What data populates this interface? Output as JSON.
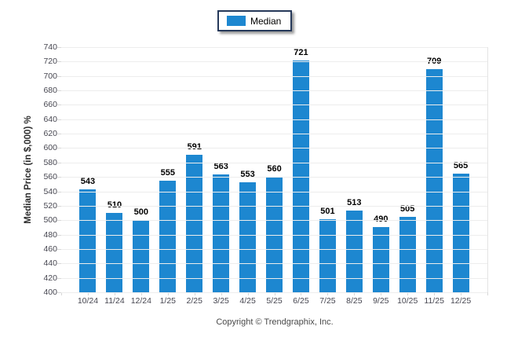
{
  "legend": {
    "items": [
      {
        "label": "Median",
        "color": "#1d87d0"
      }
    ]
  },
  "chart_data": {
    "type": "bar",
    "title": "",
    "categories": [
      "10/24",
      "11/24",
      "12/24",
      "1/25",
      "2/25",
      "3/25",
      "4/25",
      "5/25",
      "6/25",
      "7/25",
      "8/25",
      "9/25",
      "10/25",
      "11/25",
      "12/25"
    ],
    "series": [
      {
        "name": "Median",
        "values": [
          543,
          510,
          500,
          555,
          591,
          563,
          553,
          560,
          721,
          501,
          513,
          490,
          505,
          709,
          565
        ]
      }
    ],
    "xlabel": "",
    "ylabel": "Median Price (in $,000) %",
    "ylim": [
      400,
      740
    ],
    "yticks": [
      400,
      420,
      440,
      460,
      480,
      500,
      520,
      540,
      560,
      580,
      600,
      620,
      640,
      660,
      680,
      700,
      720,
      740
    ],
    "grid": "horizontal",
    "legend_position": "top-center",
    "bar_color": "#1d87d0",
    "value_labels": true
  },
  "footer": {
    "copyright": "Copyright © Trendgraphix, Inc."
  },
  "colors": {
    "bar": "#1d87d0",
    "grid": "#ededed",
    "tick": "#d7d7d7",
    "axis_text": "#474751",
    "value_label": "#000000",
    "legend_border": "#26395a"
  }
}
